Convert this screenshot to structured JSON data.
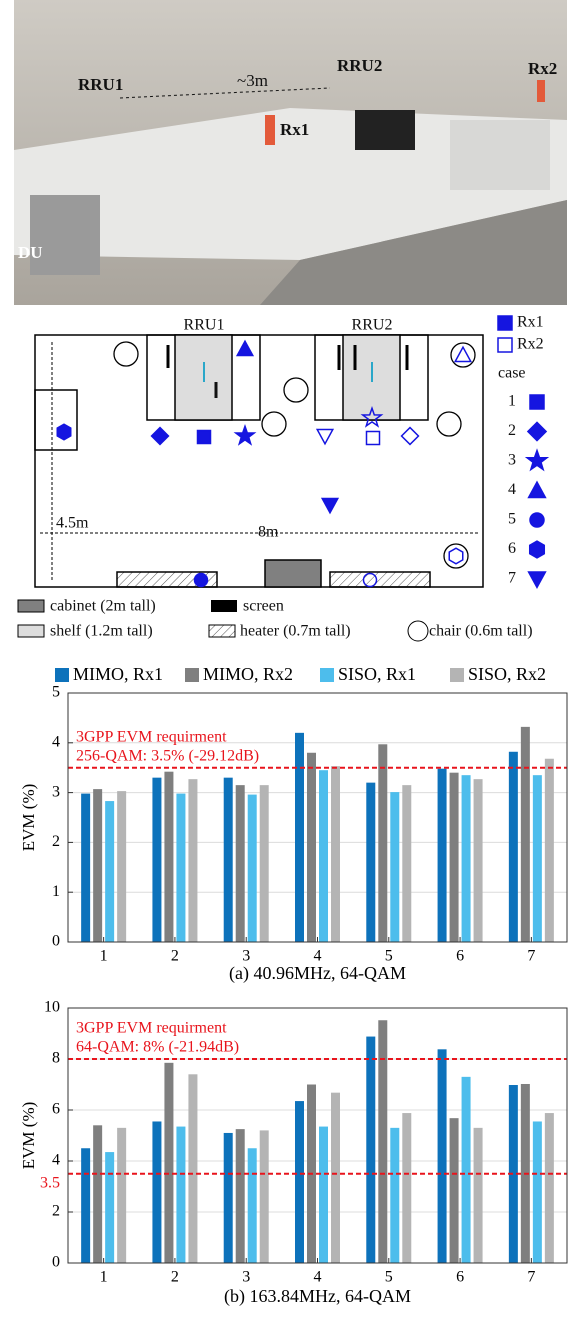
{
  "photo": {
    "labels": [
      "RRU1",
      "~3m",
      "RRU2",
      "Rx2",
      "Rx1",
      "DU"
    ]
  },
  "floorplan": {
    "rru_labels": [
      "RRU1",
      "RRU2"
    ],
    "height_label": "4.5m",
    "width_label": "8m",
    "legend": {
      "rx1": "Rx1",
      "rx2": "Rx2",
      "case_title": "case",
      "cases": [
        "1",
        "2",
        "3",
        "4",
        "5",
        "6",
        "7"
      ]
    },
    "key": {
      "cabinet": "cabinet (2m tall)",
      "screen": "screen",
      "shelf": "shelf (1.2m tall)",
      "heater": "heater (0.7m tall)",
      "chair": "chair (0.6m tall)"
    }
  },
  "chart_data": [
    {
      "type": "bar",
      "xlabel": "(a) 40.96MHz, 64-QAM",
      "ylabel": "EVM (%)",
      "categories": [
        "1",
        "2",
        "3",
        "4",
        "5",
        "6",
        "7"
      ],
      "series": [
        {
          "name": "MIMO, Rx1",
          "color": "#0d72bb",
          "values": [
            2.98,
            3.3,
            3.3,
            4.2,
            3.2,
            3.48,
            3.82
          ]
        },
        {
          "name": "MIMO, Rx2",
          "color": "#7f7f7f",
          "values": [
            3.07,
            3.42,
            3.15,
            3.8,
            3.97,
            3.4,
            4.32
          ]
        },
        {
          "name": "SISO, Rx1",
          "color": "#4dbdec",
          "values": [
            2.83,
            2.98,
            2.96,
            3.45,
            3.01,
            3.35,
            3.35
          ]
        },
        {
          "name": "SISO, Rx2",
          "color": "#b4b4b4",
          "values": [
            3.03,
            3.27,
            3.15,
            3.53,
            3.15,
            3.27,
            3.68
          ]
        }
      ],
      "ylim": [
        0,
        5
      ],
      "yticks": [
        0,
        1,
        2,
        3,
        4,
        5
      ],
      "grid": true,
      "legend": true,
      "hlines": [
        {
          "value": 3.5,
          "color": "#e8141c",
          "show_value": false
        }
      ],
      "annotations": [
        "3GPP EVM requirment",
        "256-QAM: 3.5% (-29.12dB)"
      ]
    },
    {
      "type": "bar",
      "xlabel": "(b) 163.84MHz, 64-QAM",
      "ylabel": "EVM (%)",
      "categories": [
        "1",
        "2",
        "3",
        "4",
        "5",
        "6",
        "7"
      ],
      "series": [
        {
          "color": "#0d72bb",
          "values": [
            4.5,
            5.55,
            5.1,
            6.35,
            8.88,
            8.38,
            6.98
          ]
        },
        {
          "color": "#7f7f7f",
          "values": [
            5.4,
            7.85,
            5.25,
            7.0,
            9.52,
            5.68,
            7.02
          ]
        },
        {
          "color": "#4dbdec",
          "values": [
            4.35,
            5.35,
            4.5,
            5.35,
            5.3,
            7.3,
            5.55
          ]
        },
        {
          "color": "#b4b4b4",
          "values": [
            5.3,
            7.4,
            5.2,
            6.68,
            5.88,
            5.3,
            5.88
          ]
        }
      ],
      "ylim": [
        0,
        10
      ],
      "yticks": [
        0,
        2,
        4,
        6,
        8,
        10
      ],
      "grid": true,
      "legend": false,
      "hlines": [
        {
          "value": 8,
          "color": "#e8141c",
          "show_value": false
        },
        {
          "value": 3.5,
          "color": "#e8141c",
          "show_value": true
        }
      ],
      "annotations": [
        "3GPP EVM requirment",
        "64-QAM: 8% (-21.94dB)"
      ]
    }
  ]
}
